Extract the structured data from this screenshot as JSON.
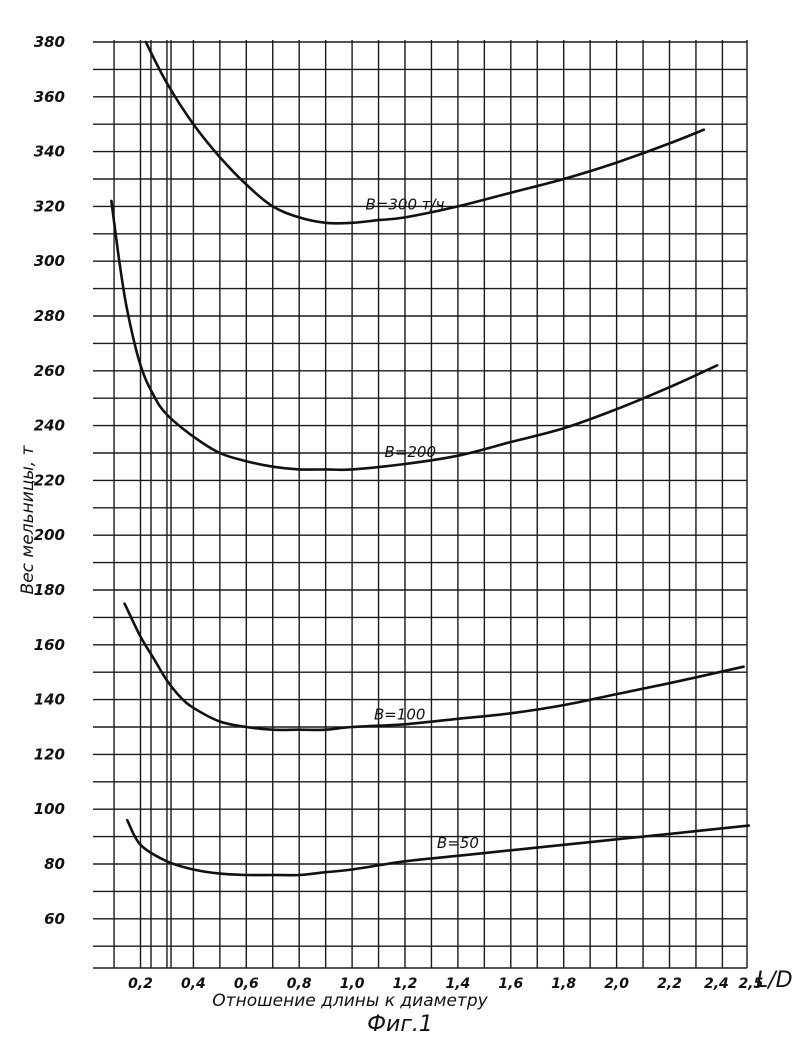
{
  "chart_data": {
    "type": "line",
    "xlabel": "Отношение длины к диаметру",
    "xunit": "L/D",
    "ylabel": "Вес мельницы, т",
    "caption": "Фиг.1",
    "xlim": [
      0.05,
      2.5
    ],
    "ylim": [
      40,
      380
    ],
    "grid": true,
    "x_ticks": [
      {
        "value": 0.2,
        "label": "0,2"
      },
      {
        "value": 0.4,
        "label": "0,4"
      },
      {
        "value": 0.6,
        "label": "0,6"
      },
      {
        "value": 0.8,
        "label": "0,8"
      },
      {
        "value": 1.0,
        "label": "1,0"
      },
      {
        "value": 1.2,
        "label": "1,2"
      },
      {
        "value": 1.4,
        "label": "1,4"
      },
      {
        "value": 1.6,
        "label": "1,6"
      },
      {
        "value": 1.8,
        "label": "1,8"
      },
      {
        "value": 2.0,
        "label": "2,0"
      },
      {
        "value": 2.2,
        "label": "2,2"
      },
      {
        "value": 2.4,
        "label": "2,4"
      },
      {
        "value": 2.5,
        "label": "2,5"
      }
    ],
    "y_ticks": [
      60,
      80,
      100,
      120,
      140,
      160,
      180,
      200,
      220,
      240,
      260,
      280,
      300,
      320,
      340,
      360,
      380
    ],
    "series": [
      {
        "name": "B=300 т/ч",
        "x": [
          0.22,
          0.3,
          0.4,
          0.5,
          0.6,
          0.7,
          0.8,
          0.9,
          1.0,
          1.1,
          1.2,
          1.4,
          1.6,
          1.8,
          2.0,
          2.2,
          2.33
        ],
        "y": [
          380,
          365,
          350,
          338,
          328,
          320,
          316,
          314,
          314,
          315,
          316,
          320,
          325,
          330,
          336,
          343,
          348
        ]
      },
      {
        "name": "B=200",
        "x": [
          0.09,
          0.12,
          0.15,
          0.2,
          0.25,
          0.3,
          0.4,
          0.5,
          0.6,
          0.7,
          0.8,
          0.9,
          1.0,
          1.2,
          1.4,
          1.6,
          1.8,
          2.0,
          2.2,
          2.38
        ],
        "y": [
          322,
          300,
          282,
          262,
          251,
          244,
          236,
          230,
          227,
          225,
          224,
          224,
          224,
          226,
          229,
          234,
          239,
          246,
          254,
          262
        ]
      },
      {
        "name": "B=100",
        "x": [
          0.14,
          0.2,
          0.25,
          0.3,
          0.35,
          0.4,
          0.5,
          0.6,
          0.7,
          0.8,
          0.9,
          1.0,
          1.2,
          1.4,
          1.6,
          1.8,
          2.0,
          2.2,
          2.48
        ],
        "y": [
          175,
          163,
          155,
          147,
          141,
          137,
          132,
          130,
          129,
          129,
          129,
          130,
          131,
          133,
          135,
          138,
          142,
          146,
          152
        ]
      },
      {
        "name": "B=50",
        "x": [
          0.15,
          0.2,
          0.3,
          0.4,
          0.5,
          0.6,
          0.7,
          0.8,
          0.9,
          1.0,
          1.2,
          1.4,
          1.6,
          1.8,
          2.0,
          2.2,
          2.5
        ],
        "y": [
          96,
          87,
          81,
          78,
          76.5,
          76,
          76,
          76,
          77,
          78,
          81,
          83,
          85,
          87,
          89,
          91,
          94
        ]
      }
    ]
  }
}
